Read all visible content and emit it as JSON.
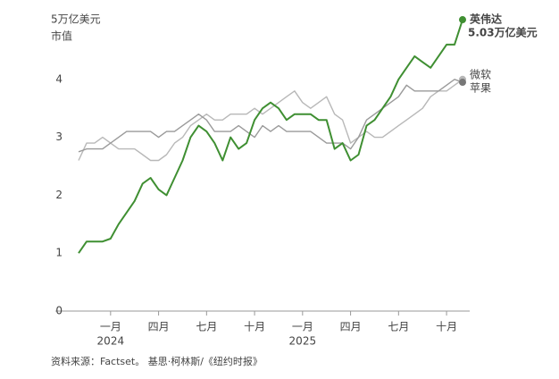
{
  "chart_data": {
    "type": "line",
    "y_label": "市值",
    "categories": [
      null,
      null,
      null,
      null,
      "一月",
      null,
      null,
      null,
      null,
      null,
      "四月",
      null,
      null,
      null,
      null,
      null,
      "七月",
      null,
      null,
      null,
      null,
      null,
      "十月",
      null,
      null,
      null,
      null,
      null,
      "一月",
      null,
      null,
      null,
      null,
      null,
      "四月",
      null,
      null,
      null,
      null,
      null,
      "七月",
      null,
      null,
      null,
      null,
      null,
      "十月",
      null,
      null
    ],
    "years": [
      "2024",
      "2025"
    ],
    "series": [
      {
        "name": "苹果",
        "color": "#b8b8b8",
        "values": [
          2.6,
          2.9,
          2.9,
          3.0,
          2.9,
          2.8,
          2.8,
          2.8,
          2.7,
          2.6,
          2.6,
          2.7,
          2.9,
          3.0,
          3.2,
          3.3,
          3.4,
          3.3,
          3.3,
          3.4,
          3.4,
          3.4,
          3.5,
          3.4,
          3.5,
          3.6,
          3.7,
          3.8,
          3.6,
          3.5,
          3.6,
          3.7,
          3.4,
          3.3,
          2.9,
          3.0,
          3.1,
          3.0,
          3.0,
          3.1,
          3.2,
          3.3,
          3.4,
          3.5,
          3.7,
          3.8,
          3.8,
          3.9,
          4.0
        ]
      },
      {
        "name": "微软",
        "color": "#9a9a9a",
        "values": [
          2.75,
          2.8,
          2.8,
          2.8,
          2.9,
          3.0,
          3.1,
          3.1,
          3.1,
          3.1,
          3.0,
          3.1,
          3.1,
          3.2,
          3.3,
          3.4,
          3.3,
          3.1,
          3.1,
          3.1,
          3.2,
          3.1,
          3.0,
          3.2,
          3.1,
          3.2,
          3.1,
          3.1,
          3.1,
          3.1,
          3.0,
          2.9,
          2.9,
          2.9,
          2.8,
          3.0,
          3.3,
          3.4,
          3.5,
          3.6,
          3.7,
          3.9,
          3.8,
          3.8,
          3.8,
          3.8,
          3.9,
          4.0,
          3.95
        ]
      },
      {
        "name": "英伟达",
        "color": "#3f8f32",
        "values": [
          1.0,
          1.2,
          1.2,
          1.2,
          1.25,
          1.5,
          1.7,
          1.9,
          2.2,
          2.3,
          2.1,
          2.0,
          2.3,
          2.6,
          3.0,
          3.2,
          3.1,
          2.9,
          2.6,
          3.0,
          2.8,
          2.9,
          3.3,
          3.5,
          3.6,
          3.5,
          3.3,
          3.4,
          3.4,
          3.4,
          3.3,
          3.3,
          2.8,
          2.9,
          2.6,
          2.7,
          3.2,
          3.3,
          3.5,
          3.7,
          4.0,
          4.2,
          4.4,
          4.3,
          4.2,
          4.4,
          4.6,
          4.6,
          5.03
        ],
        "value_labels": [
          null,
          null,
          null,
          null,
          null,
          null,
          null,
          null,
          null,
          null,
          null,
          null,
          null,
          null,
          null,
          null,
          null,
          null,
          null,
          null,
          null,
          null,
          null,
          null,
          null,
          null,
          null,
          null,
          null,
          null,
          null,
          null,
          null,
          null,
          null,
          null,
          null,
          null,
          null,
          null,
          null,
          null,
          null,
          null,
          null,
          null,
          null,
          null,
          "5.03万亿美元"
        ]
      }
    ],
    "ylim": [
      0,
      5
    ],
    "yticks": [
      0,
      1,
      2,
      3,
      4,
      {
        "value": 5,
        "label": "5万亿美元"
      }
    ],
    "source": "资料来源：Factset。 基思·柯林斯/《纽约时报》"
  }
}
